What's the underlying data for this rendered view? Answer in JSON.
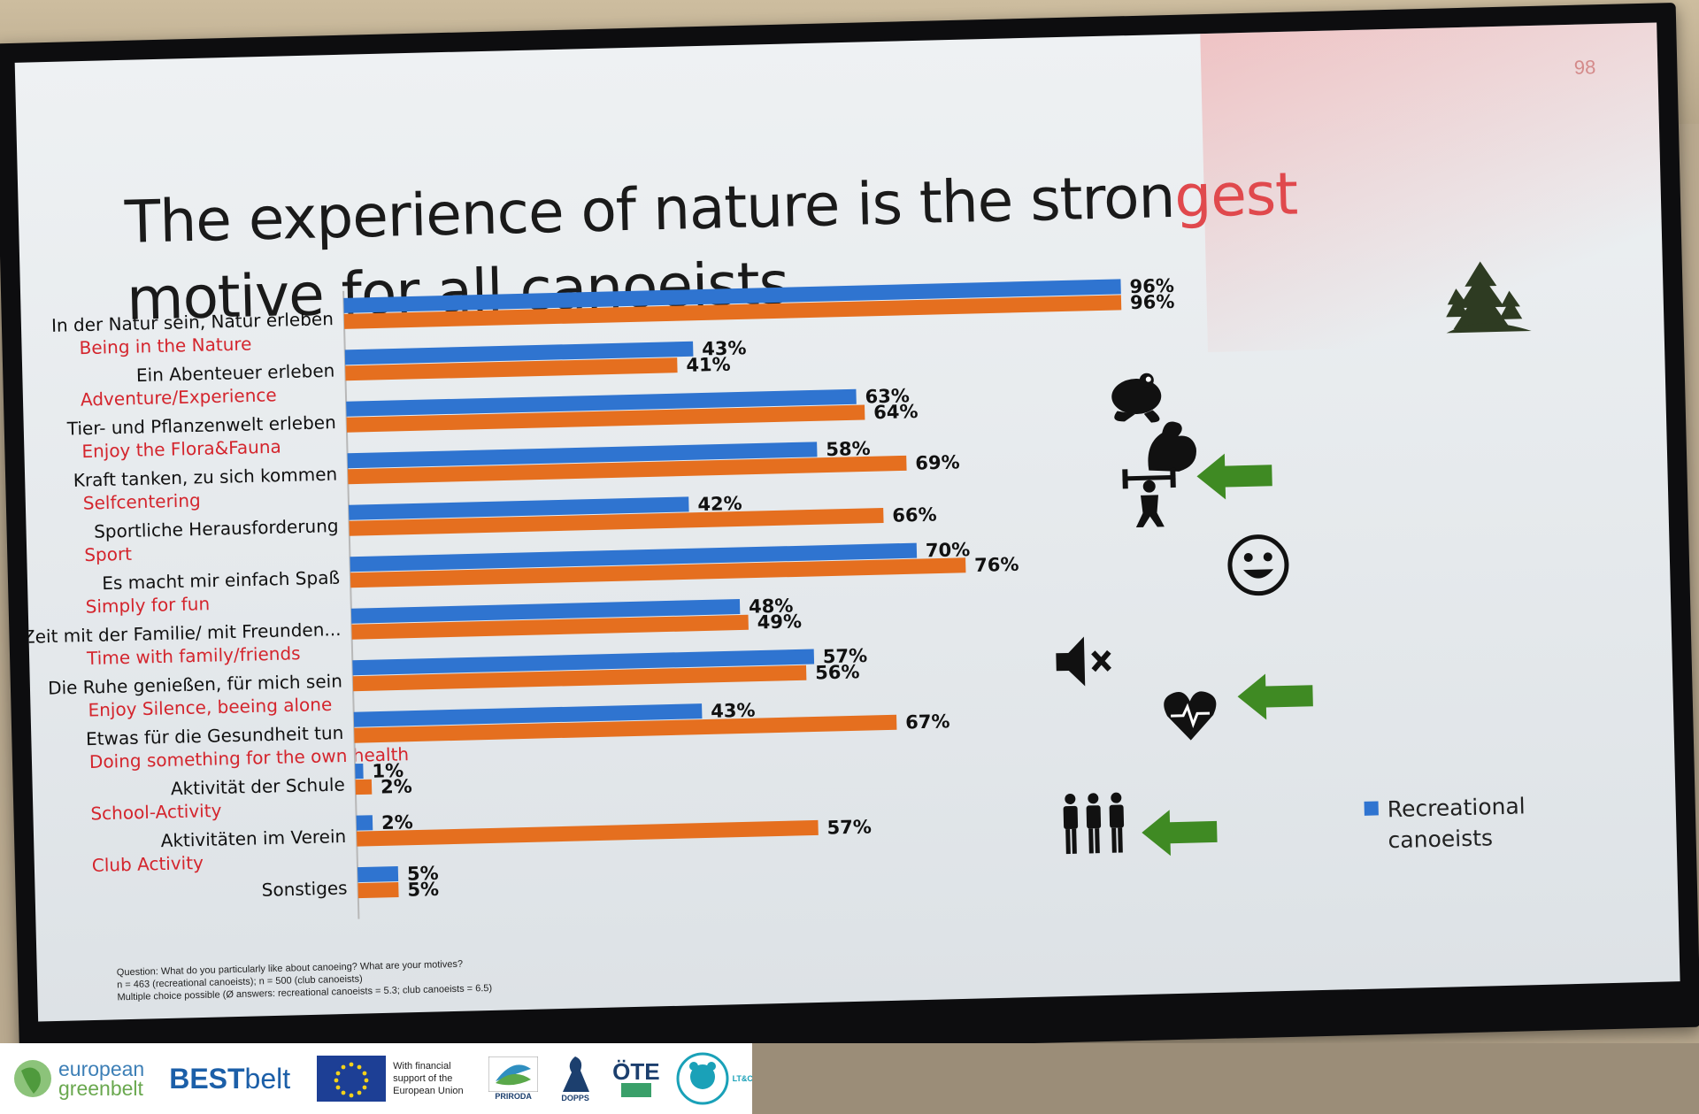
{
  "slide": {
    "number": "98",
    "title_line1": "The experience of nature is the strongest",
    "title_line2": "motive for all canoeists"
  },
  "chart_data": {
    "type": "bar",
    "orientation": "horizontal",
    "categories": [
      {
        "de": "In der Natur sein, Natur erleben",
        "en": "Being in the Nature"
      },
      {
        "de": "Ein Abenteuer erleben",
        "en": "Adventure/Experience"
      },
      {
        "de": "Tier- und Pflanzenwelt erleben",
        "en": "Enjoy the Flora&Fauna"
      },
      {
        "de": "Kraft tanken, zu sich kommen",
        "en": "Selfcentering"
      },
      {
        "de": "Sportliche Herausforderung",
        "en": "Sport"
      },
      {
        "de": "Es macht mir einfach Spaß",
        "en": "Simply for fun"
      },
      {
        "de": "Zeit mit der Familie/ mit Freunden...",
        "en": "Time with family/friends"
      },
      {
        "de": "Die Ruhe genießen, für mich sein",
        "en": "Enjoy Silence, beeing alone"
      },
      {
        "de": "Etwas für die Gesundheit tun",
        "en": "Doing something for the own health"
      },
      {
        "de": "Aktivität der Schule",
        "en": "School-Activity"
      },
      {
        "de": "Aktivitäten im Verein",
        "en": "Club Activity"
      },
      {
        "de": "Sonstiges",
        "en": ""
      }
    ],
    "series": [
      {
        "name": "Recreational canoeists",
        "color": "#2f74d0",
        "values": [
          96,
          43,
          63,
          58,
          42,
          70,
          48,
          57,
          43,
          1,
          2,
          5
        ],
        "labels": [
          "96%",
          "43%",
          "63%",
          "58%",
          "42%",
          "70%",
          "48%",
          "57%",
          "43%",
          "1%",
          "2%",
          "5%"
        ]
      },
      {
        "color": "#e56f1f",
        "values": [
          96,
          41,
          64,
          69,
          66,
          76,
          49,
          56,
          67,
          2,
          57,
          5
        ],
        "labels": [
          "96%",
          "41%",
          "64%",
          "69%",
          "66%",
          "76%",
          "49%",
          "56%",
          "67%",
          "2%",
          "57%",
          "5%"
        ]
      }
    ],
    "xlim": [
      0,
      100
    ],
    "legend_position": "bottom-right",
    "icons": [
      "trees-icon",
      "frog-icon",
      "muscle-arm-icon",
      "weightlifter-icon",
      "smiley-icon",
      "muted-speaker-icon",
      "heart-pulse-icon",
      "group-icon"
    ],
    "highlight_arrows": [
      "Sportliche Herausforderung",
      "Etwas für die Gesundheit tun",
      "Aktivitäten im Verein"
    ]
  },
  "footnote": {
    "line1": "Question: What do you particularly like about canoeing? What are your motives?",
    "line2": "n = 463 (recreational canoeists); n = 500 (club canoeists)",
    "line3": "Multiple choice possible (Ø answers: recreational canoeists = 5.3; club canoeists = 6.5)"
  },
  "logos": {
    "egb_line1": "european",
    "egb_line2": "greenbelt",
    "bestbelt_a": "BEST",
    "bestbelt_b": "belt",
    "eu_text": "With financial support of the European Union",
    "priroda": "PRIRODA",
    "dopps": "DOPPS",
    "ote": "ÖTE",
    "ltc": "LT&C"
  },
  "colors": {
    "recreational": "#2f74d0",
    "club": "#e56f1f",
    "arrow": "#3f8a23",
    "category_en": "#d4252d"
  }
}
